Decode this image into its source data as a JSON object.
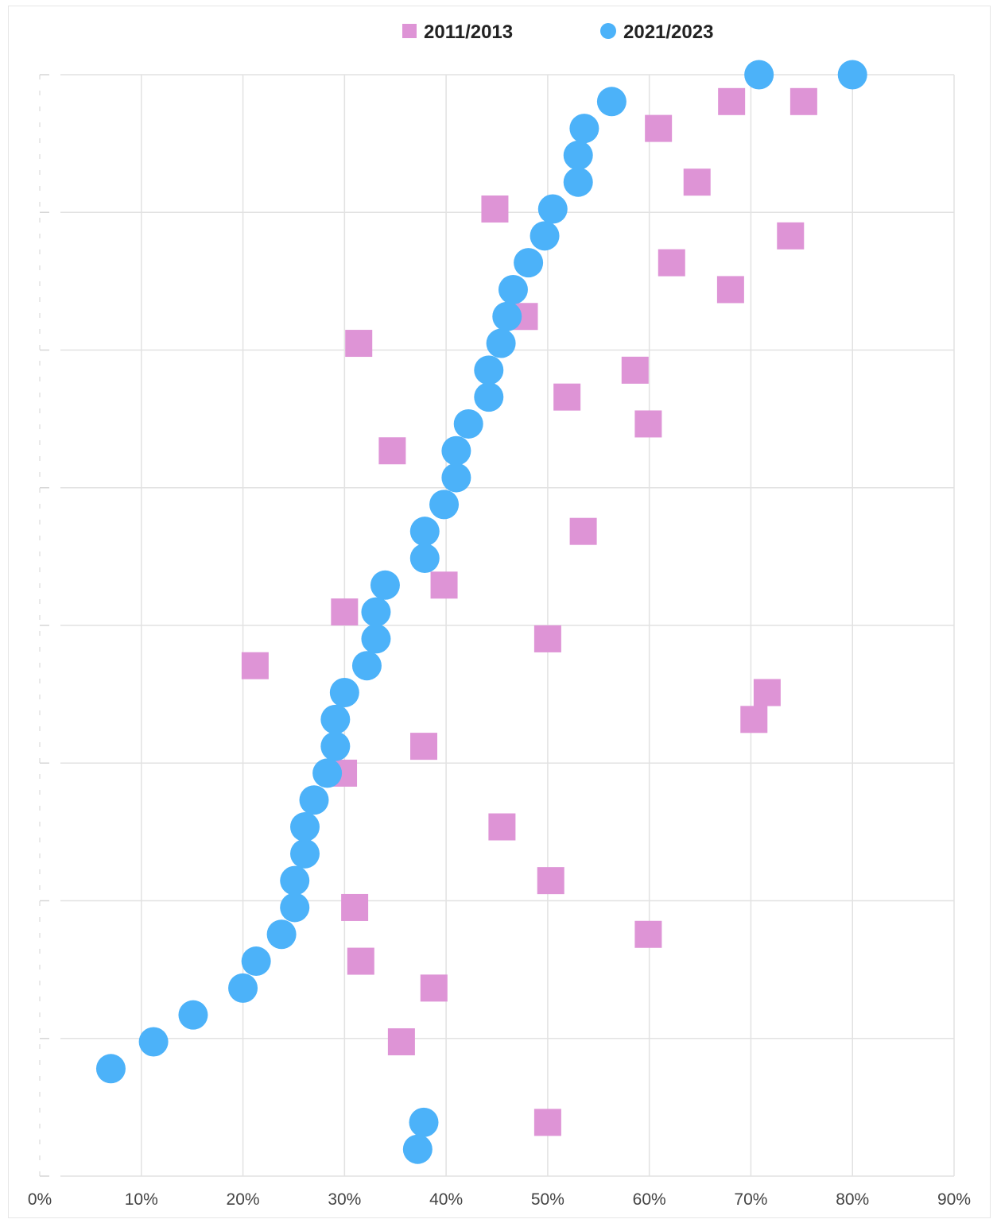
{
  "chart_data": {
    "type": "scatter",
    "title": "",
    "xlabel": "",
    "ylabel": "",
    "xlim": [
      0,
      90
    ],
    "ylim": [
      0,
      41
    ],
    "x_tick_labels": [
      "0%",
      "10%",
      "20%",
      "30%",
      "40%",
      "50%",
      "60%",
      "70%",
      "80%",
      "90%"
    ],
    "grid": true,
    "legend_position": "top-center",
    "series": [
      {
        "name": "2011/2013",
        "marker": "square",
        "color": "#de94d6",
        "points": [
          {
            "x": 50,
            "y": 2
          },
          {
            "x": 35.6,
            "y": 5
          },
          {
            "x": 38.8,
            "y": 7
          },
          {
            "x": 31.6,
            "y": 8
          },
          {
            "x": 59.9,
            "y": 9
          },
          {
            "x": 31,
            "y": 10
          },
          {
            "x": 50.3,
            "y": 11
          },
          {
            "x": 45.5,
            "y": 13
          },
          {
            "x": 29.9,
            "y": 15
          },
          {
            "x": 37.8,
            "y": 16
          },
          {
            "x": 70.3,
            "y": 17
          },
          {
            "x": 71.6,
            "y": 18
          },
          {
            "x": 21.2,
            "y": 19
          },
          {
            "x": 50,
            "y": 20
          },
          {
            "x": 30,
            "y": 21
          },
          {
            "x": 39.8,
            "y": 22
          },
          {
            "x": 53.5,
            "y": 24
          },
          {
            "x": 34.7,
            "y": 27
          },
          {
            "x": 59.9,
            "y": 28
          },
          {
            "x": 51.9,
            "y": 29
          },
          {
            "x": 58.6,
            "y": 30
          },
          {
            "x": 31.4,
            "y": 31
          },
          {
            "x": 47.7,
            "y": 32
          },
          {
            "x": 68,
            "y": 33
          },
          {
            "x": 62.2,
            "y": 34
          },
          {
            "x": 73.9,
            "y": 35
          },
          {
            "x": 44.8,
            "y": 36
          },
          {
            "x": 64.7,
            "y": 37
          },
          {
            "x": 60.9,
            "y": 39
          },
          {
            "x": 68.1,
            "y": 40
          },
          {
            "x": 75.2,
            "y": 40
          }
        ]
      },
      {
        "name": "2021/2023",
        "marker": "circle",
        "color": "#4cb2f9",
        "points": [
          {
            "x": 37.2,
            "y": 1
          },
          {
            "x": 37.8,
            "y": 2
          },
          {
            "x": 7,
            "y": 4
          },
          {
            "x": 11.2,
            "y": 5
          },
          {
            "x": 15.1,
            "y": 6
          },
          {
            "x": 20,
            "y": 7
          },
          {
            "x": 21.3,
            "y": 8
          },
          {
            "x": 23.8,
            "y": 9
          },
          {
            "x": 25.1,
            "y": 10
          },
          {
            "x": 25.1,
            "y": 11
          },
          {
            "x": 26.1,
            "y": 12
          },
          {
            "x": 26.1,
            "y": 13
          },
          {
            "x": 27,
            "y": 14
          },
          {
            "x": 28.3,
            "y": 15
          },
          {
            "x": 29.1,
            "y": 16
          },
          {
            "x": 29.1,
            "y": 17
          },
          {
            "x": 30,
            "y": 18
          },
          {
            "x": 32.2,
            "y": 19
          },
          {
            "x": 33.1,
            "y": 20
          },
          {
            "x": 33.1,
            "y": 21
          },
          {
            "x": 34,
            "y": 22
          },
          {
            "x": 37.9,
            "y": 23
          },
          {
            "x": 37.9,
            "y": 24
          },
          {
            "x": 39.8,
            "y": 25
          },
          {
            "x": 41,
            "y": 26
          },
          {
            "x": 41,
            "y": 27
          },
          {
            "x": 42.2,
            "y": 28
          },
          {
            "x": 44.2,
            "y": 29
          },
          {
            "x": 44.2,
            "y": 30
          },
          {
            "x": 45.4,
            "y": 31
          },
          {
            "x": 46,
            "y": 32
          },
          {
            "x": 46.6,
            "y": 33
          },
          {
            "x": 48.1,
            "y": 34
          },
          {
            "x": 49.7,
            "y": 35
          },
          {
            "x": 50.5,
            "y": 36
          },
          {
            "x": 53,
            "y": 37
          },
          {
            "x": 53,
            "y": 38
          },
          {
            "x": 53.6,
            "y": 39
          },
          {
            "x": 56.3,
            "y": 40
          },
          {
            "x": 70.8,
            "y": 41
          },
          {
            "x": 80,
            "y": 41
          }
        ]
      }
    ]
  }
}
